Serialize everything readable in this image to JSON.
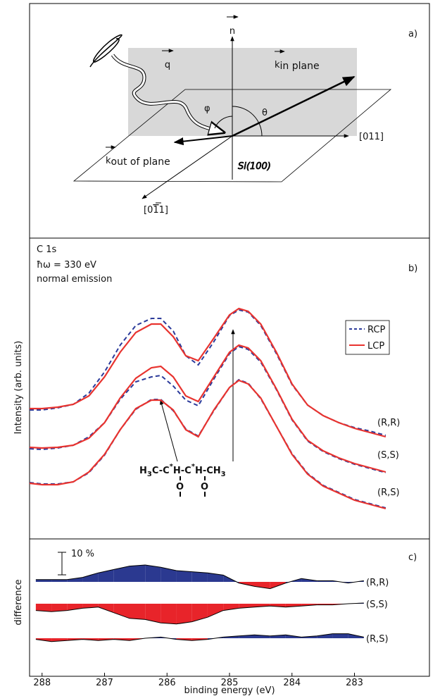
{
  "diagram": {
    "label": "a)",
    "n": "n",
    "q": "q",
    "k_in": "k",
    "k_in_sub": "in plane",
    "k_out": "k",
    "k_out_sub": "out of plane",
    "theta": "θ",
    "phi": "φ",
    "axis_011": "[011]",
    "axis_0m11": [
      "[0",
      "1",
      "1]"
    ],
    "surface": "Si(100)"
  },
  "chart_data": [
    {
      "type": "line",
      "label": "b)",
      "text": [
        "C 1s",
        "ħω = 330 eV",
        "normal emission"
      ],
      "ylabel": "Intensity (arb. units)",
      "molecule": [
        "H",
        "3",
        "C-C",
        "*",
        "H-C",
        "*",
        "H-CH",
        "3",
        "O",
        "O"
      ],
      "legend": "upper right",
      "xlim": [
        288.2,
        281.8
      ],
      "ylim": [
        0,
        427
      ],
      "x": [
        288.2,
        288.0,
        287.75,
        287.5,
        287.25,
        287.0,
        286.75,
        286.5,
        286.25,
        286.1,
        285.9,
        285.7,
        285.5,
        285.25,
        285.0,
        284.85,
        284.7,
        284.5,
        284.25,
        284.0,
        283.75,
        283.5,
        283.25,
        283.0,
        282.75,
        282.5
      ],
      "traces": [
        "(R,R)",
        "(S,S)",
        "(R,S)"
      ],
      "series": [
        {
          "name": "RCP",
          "color": "#2b3a9a",
          "dashed": true,
          "values": [
            [
              183,
              183,
              186,
              191,
              207,
              237,
              275,
              303,
              313,
              313,
              295,
              260,
              247,
              280,
              317,
              325,
              322,
              303,
              263,
              219,
              190,
              175,
              165,
              158,
              153,
              147
            ],
            [
              128,
              127,
              129,
              133,
              145,
              165,
              198,
              223,
              230,
              232,
              217,
              197,
              189,
              227,
              263,
              273,
              269,
              251,
              212,
              169,
              139,
              124,
              114,
              106,
              100,
              94
            ],
            [
              80,
              78,
              78,
              81,
              94,
              119,
              155,
              184,
              198,
              198,
              182,
              156,
              146,
              182,
              215,
              226,
              221,
              199,
              160,
              121,
              93,
              76,
              66,
              56,
              50,
              44
            ]
          ]
        },
        {
          "name": "LCP",
          "color": "#e8332f",
          "dashed": false,
          "values": [
            [
              185,
              185,
              187,
              191,
              203,
              230,
              265,
              293,
              305,
              305,
              287,
              260,
              253,
              285,
              318,
              327,
              323,
              305,
              265,
              220,
              190,
              175,
              165,
              157,
              151,
              145
            ],
            [
              130,
              129,
              130,
              133,
              143,
              165,
              200,
              228,
              243,
              245,
              230,
              203,
              195,
              230,
              265,
              275,
              271,
              253,
              213,
              170,
              140,
              125,
              115,
              107,
              101,
              95
            ],
            [
              79,
              77,
              77,
              81,
              95,
              120,
              155,
              185,
              197,
              197,
              183,
              155,
              145,
              183,
              215,
              225,
              220,
              200,
              160,
              120,
              92,
              75,
              65,
              55,
              49,
              43
            ]
          ]
        }
      ]
    },
    {
      "type": "area",
      "label": "c)",
      "ylabel": "difference",
      "xlabel": "binding energy (eV)",
      "scale_bar": {
        "value": 10,
        "label": "10 %"
      },
      "xlim": [
        288.2,
        281.8
      ],
      "xticks": [
        288,
        287,
        286,
        285,
        284,
        283
      ],
      "pos_color": "#2b3990",
      "neg_color": "#e8242a",
      "x": [
        288.1,
        287.85,
        287.6,
        287.35,
        287.1,
        286.85,
        286.6,
        286.35,
        286.1,
        285.85,
        285.6,
        285.35,
        285.1,
        284.85,
        284.6,
        284.35,
        284.1,
        283.85,
        283.6,
        283.35,
        283.1,
        282.85
      ],
      "series": [
        {
          "name": "(R,R)",
          "values": [
            1,
            1,
            1,
            2,
            4,
            5.5,
            7,
            7.5,
            6.5,
            5,
            4.5,
            4,
            3,
            -0.5,
            -2,
            -3,
            -0.5,
            1.5,
            0.5,
            0.5,
            -0.5,
            0.5
          ]
        },
        {
          "name": "(S,S)",
          "values": [
            -3,
            -3.5,
            -3,
            -2,
            -1.5,
            -4,
            -6.5,
            -7,
            -8.5,
            -9,
            -8,
            -6,
            -3,
            -2,
            -1.5,
            -1,
            -1.5,
            -1,
            -0.5,
            -0.5,
            0,
            0.3
          ]
        },
        {
          "name": "(R,S)",
          "values": [
            -0.5,
            -1.5,
            -1,
            -0.5,
            -1,
            -0.5,
            -1,
            0,
            0.5,
            -0.5,
            -1,
            -0.5,
            0.5,
            1,
            1.5,
            1,
            1.5,
            0.5,
            1,
            2,
            2,
            0.5
          ]
        }
      ]
    }
  ]
}
